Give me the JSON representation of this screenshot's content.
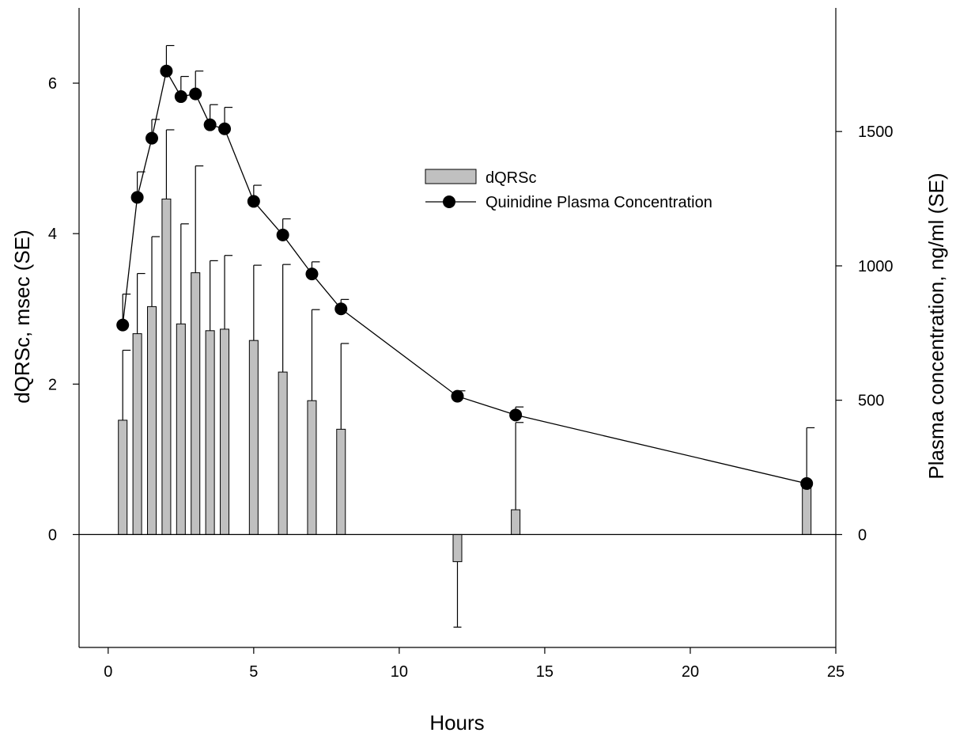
{
  "chart_data": {
    "type": "bar+line",
    "title": "",
    "xlabel": "Hours",
    "ylabel_left": "dQRSc, msec (SE)",
    "ylabel_right": "Plasma concentration, ng/ml (SE)",
    "xlim": [
      -1,
      25
    ],
    "ylim_left": [
      -1.5,
      7.0
    ],
    "ylim_right": [
      -420,
      1960
    ],
    "x_ticks": [
      0,
      5,
      10,
      15,
      20,
      25
    ],
    "y_ticks_left": [
      0,
      2,
      4,
      6
    ],
    "y_ticks_right": [
      0,
      500,
      1000,
      1500
    ],
    "x_tick_labels": [
      "0",
      "5",
      "10",
      "15",
      "20",
      "25"
    ],
    "y_tick_labels_left": [
      "0",
      "2",
      "4",
      "6"
    ],
    "y_tick_labels_right": [
      "0",
      "500",
      "1000",
      "1500"
    ],
    "grid": false,
    "legend_position": "upper-center-right",
    "series": [
      {
        "name": "dQRSc",
        "kind": "bar",
        "axis": "left",
        "color": "#c0c0c0",
        "x": [
          0.5,
          1,
          1.5,
          2,
          2.5,
          3,
          3.5,
          4,
          5,
          6,
          7,
          8,
          12,
          14,
          24
        ],
        "values": [
          1.52,
          2.67,
          3.03,
          4.46,
          2.8,
          3.48,
          2.71,
          2.73,
          2.58,
          2.16,
          1.78,
          1.4,
          -0.36,
          0.33,
          0.68
        ],
        "error": [
          0.93,
          0.8,
          0.93,
          0.92,
          1.33,
          1.42,
          0.93,
          0.98,
          1.0,
          1.43,
          1.21,
          1.14,
          0.87,
          1.16,
          0.74
        ]
      },
      {
        "name": "Quinidine Plasma Concentration",
        "kind": "line",
        "axis": "right",
        "color": "#000000",
        "x": [
          0.5,
          1,
          1.5,
          2,
          2.5,
          3,
          3.5,
          4,
          5,
          6,
          7,
          8,
          12,
          14,
          24
        ],
        "values": [
          780,
          1255,
          1475,
          1725,
          1630,
          1640,
          1525,
          1510,
          1240,
          1115,
          970,
          840,
          515,
          445,
          190
        ],
        "error": [
          115,
          95,
          70,
          95,
          75,
          85,
          75,
          80,
          60,
          60,
          45,
          35,
          20,
          30,
          0
        ]
      }
    ]
  }
}
